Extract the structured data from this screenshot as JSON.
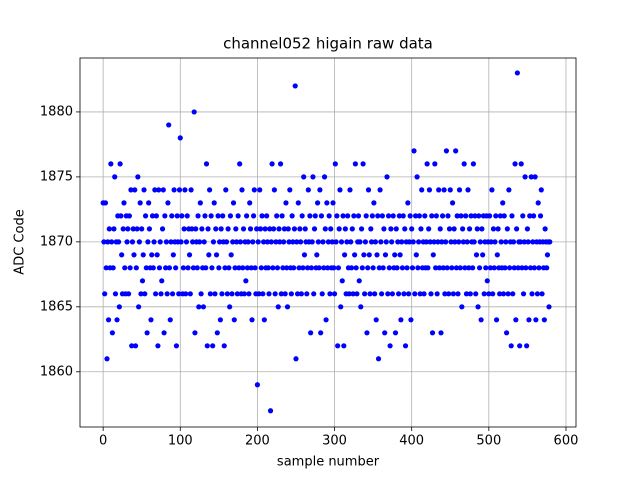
{
  "chart_data": {
    "type": "scatter",
    "title": "channel052 higain raw data",
    "x_label": "sample number",
    "y_label": "ADC Code",
    "xlim": [
      -30,
      613
    ],
    "ylim": [
      1855.75,
      1884.15
    ],
    "xticks": [
      0,
      100,
      200,
      300,
      400,
      500,
      600
    ],
    "yticks": [
      1860,
      1865,
      1870,
      1875,
      1880
    ],
    "grid": true,
    "color": "#0000ff",
    "x": [
      0,
      1,
      2,
      3,
      4,
      5,
      6,
      7,
      8,
      9,
      10,
      11,
      12,
      13,
      14,
      15,
      16,
      17,
      18,
      19,
      20,
      21,
      22,
      23,
      24,
      25,
      26,
      27,
      28,
      29,
      30,
      31,
      32,
      33,
      34,
      35,
      36,
      37,
      38,
      39,
      40,
      41,
      42,
      43,
      44,
      45,
      46,
      47,
      48,
      49,
      50,
      51,
      52,
      53,
      54,
      55,
      56,
      57,
      58,
      59,
      60,
      61,
      62,
      63,
      64,
      65,
      66,
      67,
      68,
      69,
      70,
      71,
      72,
      73,
      74,
      75,
      76,
      77,
      78,
      79,
      80,
      81,
      82,
      83,
      84,
      85,
      86,
      87,
      88,
      89,
      90,
      91,
      92,
      93,
      94,
      95,
      96,
      97,
      98,
      99,
      100,
      101,
      102,
      103,
      104,
      105,
      106,
      107,
      108,
      109,
      110,
      111,
      112,
      113,
      114,
      115,
      116,
      117,
      118,
      119,
      120,
      121,
      122,
      123,
      124,
      125,
      126,
      127,
      128,
      129,
      130,
      131,
      132,
      133,
      134,
      135,
      136,
      137,
      138,
      139,
      140,
      141,
      142,
      143,
      144,
      145,
      146,
      147,
      148,
      149,
      150,
      151,
      152,
      153,
      154,
      155,
      156,
      157,
      158,
      159,
      160,
      161,
      162,
      163,
      164,
      165,
      166,
      167,
      168,
      169,
      170,
      171,
      172,
      173,
      174,
      175,
      176,
      177,
      178,
      179,
      180,
      181,
      182,
      183,
      184,
      185,
      186,
      187,
      188,
      189,
      190,
      191,
      192,
      193,
      194,
      195,
      196,
      197,
      198,
      199,
      200,
      201,
      202,
      203,
      204,
      205,
      206,
      207,
      208,
      209,
      210,
      211,
      212,
      213,
      214,
      215,
      216,
      217,
      218,
      219,
      220,
      221,
      222,
      223,
      224,
      225,
      226,
      227,
      228,
      229,
      230,
      231,
      232,
      233,
      234,
      235,
      236,
      237,
      238,
      239,
      240,
      241,
      242,
      243,
      244,
      245,
      246,
      247,
      248,
      249,
      250,
      251,
      252,
      253,
      254,
      255,
      256,
      257,
      258,
      259,
      260,
      261,
      262,
      263,
      264,
      265,
      266,
      267,
      268,
      269,
      270,
      271,
      272,
      273,
      274,
      275,
      276,
      277,
      278,
      279,
      280,
      281,
      282,
      283,
      284,
      285,
      286,
      287,
      288,
      289,
      290,
      291,
      292,
      293,
      294,
      295,
      296,
      297,
      298,
      299,
      300,
      301,
      302,
      303,
      304,
      305,
      306,
      307,
      308,
      309,
      310,
      311,
      312,
      313,
      314,
      315,
      316,
      317,
      318,
      319,
      320,
      321,
      322,
      323,
      324,
      325,
      326,
      327,
      328,
      329,
      330,
      331,
      332,
      333,
      334,
      335,
      336,
      337,
      338,
      339,
      340,
      341,
      342,
      343,
      344,
      345,
      346,
      347,
      348,
      349,
      350,
      351,
      352,
      353,
      354,
      355,
      356,
      357,
      358,
      359,
      360,
      361,
      362,
      363,
      364,
      365,
      366,
      367,
      368,
      369,
      370,
      371,
      372,
      373,
      374,
      375,
      376,
      377,
      378,
      379,
      380,
      381,
      382,
      383,
      384,
      385,
      386,
      387,
      388,
      389,
      390,
      391,
      392,
      393,
      394,
      395,
      396,
      397,
      398,
      399,
      400,
      401,
      402,
      403,
      404,
      405,
      406,
      407,
      408,
      409,
      410,
      411,
      412,
      413,
      414,
      415,
      416,
      417,
      418,
      419,
      420,
      421,
      422,
      423,
      424,
      425,
      426,
      427,
      428,
      429,
      430,
      431,
      432,
      433,
      434,
      435,
      436,
      437,
      438,
      439,
      440,
      441,
      442,
      443,
      444,
      445,
      446,
      447,
      448,
      449,
      450,
      451,
      452,
      453,
      454,
      455,
      456,
      457,
      458,
      459,
      460,
      461,
      462,
      463,
      464,
      465,
      466,
      467,
      468,
      469,
      470,
      471,
      472,
      473,
      474,
      475,
      476,
      477,
      478,
      479,
      480,
      481,
      482,
      483,
      484,
      485,
      486,
      487,
      488,
      489,
      490,
      491,
      492,
      493,
      494,
      495,
      496,
      497,
      498,
      499,
      500,
      501,
      502,
      503,
      504,
      505,
      506,
      507,
      508,
      509,
      510,
      511,
      512,
      513,
      514,
      515,
      516,
      517,
      518,
      519,
      520,
      521,
      522,
      523,
      524,
      525,
      526,
      527,
      528,
      529,
      530,
      531,
      532,
      533,
      534,
      535,
      536,
      537,
      538,
      539,
      540,
      541,
      542,
      543,
      544,
      545,
      546,
      547,
      548,
      549,
      550,
      551,
      552,
      553,
      554,
      555,
      556,
      557,
      558,
      559,
      560,
      561,
      562,
      563,
      564,
      565,
      566,
      567,
      568,
      569,
      570,
      571,
      572,
      573,
      574,
      575,
      576,
      577,
      578,
      579
    ],
    "values": [
      1873,
      1870,
      1866,
      1873,
      1868,
      1861,
      1870,
      1864,
      1871,
      1868,
      1876,
      1870,
      1863,
      1868,
      1871,
      1875,
      1866,
      1870,
      1864,
      1872,
      1870,
      1865,
      1876,
      1872,
      1869,
      1866,
      1871,
      1873,
      1868,
      1866,
      1872,
      1870,
      1871,
      1866,
      1872,
      1868,
      1874,
      1862,
      1870,
      1871,
      1869,
      1874,
      1862,
      1868,
      1871,
      1875,
      1865,
      1870,
      1873,
      1866,
      1871,
      1867,
      1869,
      1874,
      1866,
      1872,
      1868,
      1863,
      1870,
      1873,
      1871,
      1868,
      1864,
      1869,
      1872,
      1868,
      1870,
      1874,
      1866,
      1872,
      1869,
      1862,
      1874,
      1868,
      1870,
      1866,
      1867,
      1871,
      1874,
      1863,
      1872,
      1868,
      1870,
      1866,
      1873,
      1879,
      1868,
      1864,
      1870,
      1872,
      1866,
      1869,
      1874,
      1870,
      1868,
      1862,
      1872,
      1870,
      1866,
      1874,
      1878,
      1870,
      1872,
      1866,
      1868,
      1871,
      1874,
      1866,
      1870,
      1872,
      1868,
      1871,
      1869,
      1866,
      1874,
      1871,
      1870,
      1868,
      1880,
      1863,
      1871,
      1870,
      1868,
      1872,
      1865,
      1870,
      1873,
      1866,
      1871,
      1868,
      1865,
      1870,
      1872,
      1868,
      1876,
      1862,
      1871,
      1869,
      1874,
      1866,
      1872,
      1868,
      1862,
      1870,
      1873,
      1866,
      1871,
      1869,
      1863,
      1872,
      1868,
      1870,
      1864,
      1871,
      1866,
      1872,
      1870,
      1862,
      1868,
      1874,
      1870,
      1866,
      1871,
      1868,
      1865,
      1872,
      1869,
      1866,
      1870,
      1873,
      1864,
      1868,
      1871,
      1870,
      1866,
      1872,
      1868,
      1876,
      1870,
      1866,
      1874,
      1868,
      1871,
      1866,
      1870,
      1867,
      1872,
      1868,
      1870,
      1866,
      1873,
      1871,
      1868,
      1864,
      1870,
      1872,
      1874,
      1868,
      1866,
      1871,
      1859,
      1870,
      1866,
      1874,
      1871,
      1868,
      1872,
      1866,
      1870,
      1864,
      1871,
      1868,
      1872,
      1870,
      1868,
      1866,
      1871,
      1857,
      1870,
      1876,
      1868,
      1871,
      1874,
      1866,
      1870,
      1872,
      1868,
      1865,
      1871,
      1870,
      1876,
      1866,
      1872,
      1868,
      1870,
      1871,
      1866,
      1873,
      1868,
      1865,
      1871,
      1870,
      1874,
      1868,
      1866,
      1872,
      1870,
      1868,
      1871,
      1882,
      1861,
      1870,
      1866,
      1873,
      1868,
      1871,
      1870,
      1866,
      1872,
      1868,
      1875,
      1869,
      1871,
      1870,
      1866,
      1868,
      1874,
      1870,
      1872,
      1863,
      1868,
      1870,
      1875,
      1866,
      1871,
      1872,
      1868,
      1869,
      1873,
      1870,
      1868,
      1874,
      1863,
      1872,
      1866,
      1870,
      1868,
      1875,
      1871,
      1864,
      1873,
      1868,
      1870,
      1872,
      1866,
      1871,
      1868,
      1870,
      1873,
      1868,
      1866,
      1876,
      1870,
      1872,
      1862,
      1868,
      1871,
      1874,
      1865,
      1870,
      1867,
      1872,
      1862,
      1869,
      1871,
      1866,
      1870,
      1872,
      1868,
      1866,
      1874,
      1870,
      1868,
      1871,
      1866,
      1872,
      1869,
      1876,
      1868,
      1866,
      1870,
      1872,
      1867,
      1870,
      1865,
      1871,
      1868,
      1876,
      1869,
      1866,
      1870,
      1872,
      1863,
      1868,
      1874,
      1869,
      1866,
      1871,
      1870,
      1872,
      1868,
      1873,
      1866,
      1870,
      1864,
      1869,
      1872,
      1861,
      1868,
      1874,
      1870,
      1866,
      1872,
      1868,
      1871,
      1863,
      1869,
      1870,
      1875,
      1866,
      1872,
      1868,
      1862,
      1871,
      1870,
      1866,
      1872,
      1868,
      1869,
      1863,
      1871,
      1868,
      1870,
      1866,
      1872,
      1869,
      1864,
      1870,
      1868,
      1872,
      1866,
      1871,
      1862,
      1870,
      1868,
      1873,
      1866,
      1870,
      1872,
      1864,
      1871,
      1868,
      1870,
      1877,
      1866,
      1872,
      1869,
      1875,
      1868,
      1870,
      1872,
      1866,
      1871,
      1874,
      1868,
      1870,
      1866,
      1872,
      1868,
      1870,
      1876,
      1868,
      1871,
      1874,
      1870,
      1866,
      1872,
      1863,
      1869,
      1870,
      1876,
      1868,
      1872,
      1866,
      1870,
      1874,
      1868,
      1871,
      1863,
      1870,
      1872,
      1868,
      1874,
      1866,
      1870,
      1877,
      1868,
      1872,
      1866,
      1871,
      1874,
      1870,
      1868,
      1873,
      1866,
      1871,
      1870,
      1877,
      1868,
      1872,
      1866,
      1870,
      1874,
      1868,
      1872,
      1865,
      1871,
      1870,
      1876,
      1868,
      1872,
      1866,
      1870,
      1874,
      1868,
      1871,
      1866,
      1872,
      1870,
      1868,
      1876,
      1870,
      1872,
      1866,
      1869,
      1871,
      1865,
      1872,
      1868,
      1870,
      1864,
      1871,
      1869,
      1872,
      1866,
      1870,
      1868,
      1872,
      1867,
      1870,
      1866,
      1872,
      1868,
      1870,
      1874,
      1866,
      1871,
      1868,
      1870,
      1872,
      1864,
      1869,
      1871,
      1868,
      1866,
      1872,
      1870,
      1868,
      1873,
      1866,
      1872,
      1868,
      1870,
      1863,
      1871,
      1866,
      1874,
      1868,
      1870,
      1862,
      1872,
      1866,
      1870,
      1868,
      1876,
      1864,
      1871,
      1883,
      1868,
      1870,
      1862,
      1870,
      1876,
      1868,
      1872,
      1866,
      1870,
      1875,
      1868,
      1862,
      1871,
      1870,
      1864,
      1872,
      1868,
      1875,
      1866,
      1870,
      1872,
      1868,
      1875,
      1864,
      1870,
      1866,
      1873,
      1868,
      1870,
      1872,
      1874,
      1866,
      1870,
      1868,
      1864,
      1871,
      1870,
      1868,
      1869,
      1870,
      1865,
      1870
    ]
  }
}
